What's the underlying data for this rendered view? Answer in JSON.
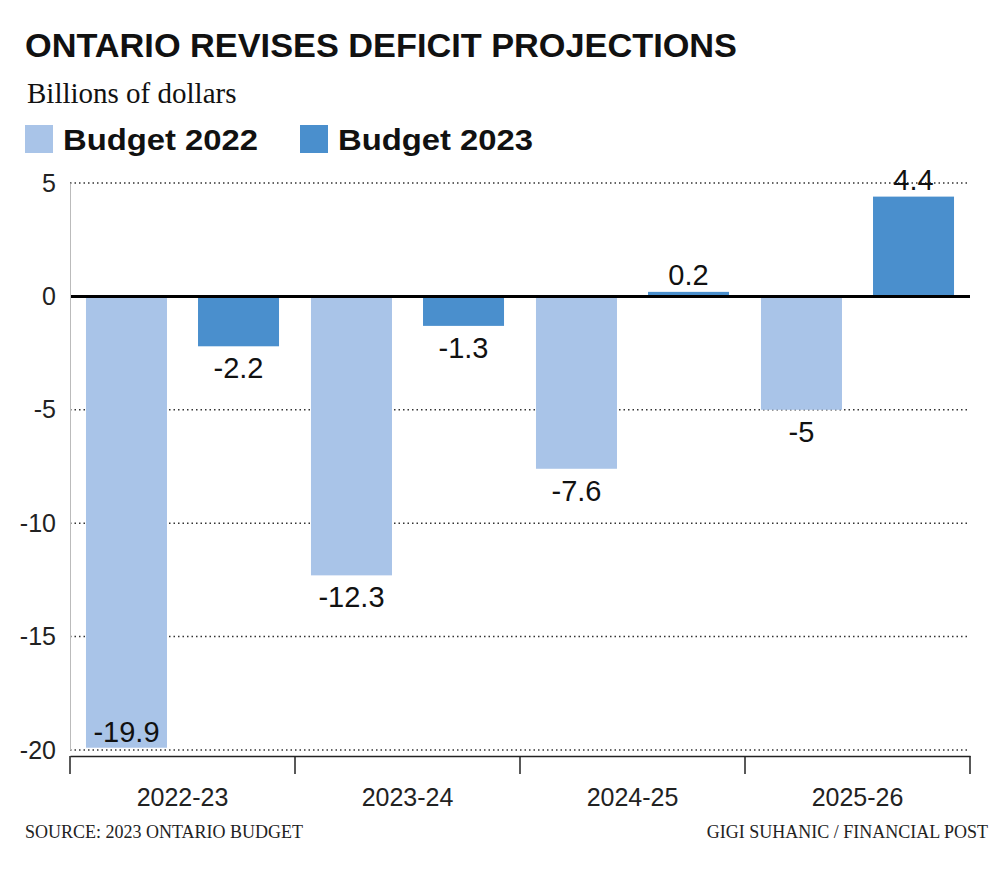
{
  "chart_data": {
    "type": "bar",
    "title": "ONTARIO REVISES DEFICIT PROJECTIONS",
    "subtitle": "Billions of dollars",
    "categories": [
      "2022-23",
      "2023-24",
      "2024-25",
      "2025-26"
    ],
    "series": [
      {
        "name": "Budget 2022",
        "color": "#a9c4e8",
        "values": [
          -19.9,
          -12.3,
          -7.6,
          -5
        ]
      },
      {
        "name": "Budget 2023",
        "color": "#4a8fcd",
        "values": [
          -2.2,
          -1.3,
          0.2,
          4.4
        ]
      }
    ],
    "ylim": [
      -20,
      5
    ],
    "yticks": [
      -20,
      -15,
      -10,
      -5,
      0,
      5
    ],
    "grid": true,
    "legend": "top-left",
    "data_labels": true,
    "source": "SOURCE: 2023 ONTARIO BUDGET",
    "credit": "GIGI SUHANIC / FINANCIAL POST"
  }
}
